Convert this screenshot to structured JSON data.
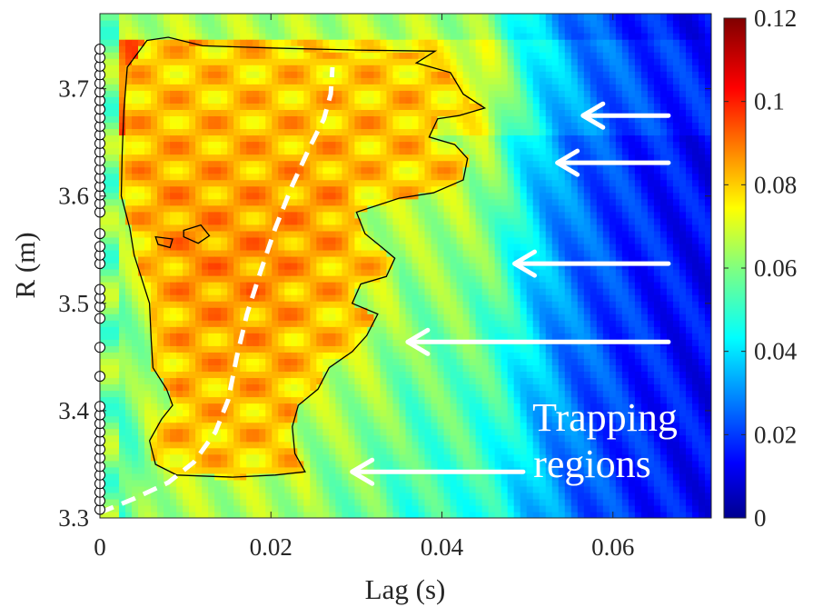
{
  "chart_data": {
    "type": "heatmap",
    "xlabel": "Lag (s)",
    "ylabel": "R (m)",
    "xlim": [
      0,
      0.0715
    ],
    "ylim": [
      3.3,
      3.77
    ],
    "x_ticks": [
      0,
      0.02,
      0.04,
      0.06
    ],
    "x_tick_labels": [
      "0",
      "0.02",
      "0.04",
      "0.06"
    ],
    "y_ticks": [
      3.3,
      3.4,
      3.5,
      3.6,
      3.7
    ],
    "y_tick_labels": [
      "3.3",
      "3.4",
      "3.5",
      "3.6",
      "3.7"
    ],
    "colorbar": {
      "range": [
        0,
        0.12
      ],
      "ticks": [
        0,
        0.02,
        0.04,
        0.06,
        0.08,
        0.1,
        0.12
      ],
      "tick_labels": [
        "0",
        "0.02",
        "0.04",
        "0.06",
        "0.08",
        "0.1",
        "0.12"
      ],
      "colormap": "jet"
    },
    "annotation": {
      "lines": [
        "Trapping",
        "regions"
      ],
      "color": "#ffffff"
    },
    "arrows": [
      {
        "y": 3.343,
        "x_from": 0.0495,
        "x_to": 0.0295
      },
      {
        "y": 3.464,
        "x_from": 0.0665,
        "x_to": 0.036
      },
      {
        "y": 3.537,
        "x_from": 0.0665,
        "x_to": 0.0485
      },
      {
        "y": 3.631,
        "x_from": 0.0665,
        "x_to": 0.0535
      },
      {
        "y": 3.675,
        "x_from": 0.0665,
        "x_to": 0.0565
      }
    ],
    "dashed_curve": {
      "color": "#ffffff",
      "points": [
        [
          0.0,
          3.305
        ],
        [
          0.004,
          3.318
        ],
        [
          0.008,
          3.333
        ],
        [
          0.011,
          3.352
        ],
        [
          0.0135,
          3.38
        ],
        [
          0.015,
          3.41
        ],
        [
          0.016,
          3.45
        ],
        [
          0.0172,
          3.49
        ],
        [
          0.0188,
          3.53
        ],
        [
          0.0205,
          3.57
        ],
        [
          0.0225,
          3.61
        ],
        [
          0.0245,
          3.645
        ],
        [
          0.0262,
          3.672
        ],
        [
          0.027,
          3.695
        ],
        [
          0.0272,
          3.72
        ]
      ]
    },
    "contour": {
      "level": 0.07,
      "color": "#000000",
      "points": [
        [
          0.0055,
          3.745
        ],
        [
          0.008,
          3.748
        ],
        [
          0.012,
          3.74
        ],
        [
          0.02,
          3.738
        ],
        [
          0.03,
          3.736
        ],
        [
          0.0392,
          3.735
        ],
        [
          0.037,
          3.724
        ],
        [
          0.041,
          3.715
        ],
        [
          0.0425,
          3.695
        ],
        [
          0.045,
          3.682
        ],
        [
          0.042,
          3.675
        ],
        [
          0.0395,
          3.672
        ],
        [
          0.0385,
          3.655
        ],
        [
          0.0415,
          3.648
        ],
        [
          0.043,
          3.635
        ],
        [
          0.0425,
          3.615
        ],
        [
          0.039,
          3.603
        ],
        [
          0.035,
          3.598
        ],
        [
          0.03,
          3.585
        ],
        [
          0.031,
          3.565
        ],
        [
          0.033,
          3.552
        ],
        [
          0.0345,
          3.542
        ],
        [
          0.0335,
          3.525
        ],
        [
          0.0305,
          3.518
        ],
        [
          0.0295,
          3.5
        ],
        [
          0.0325,
          3.49
        ],
        [
          0.0312,
          3.47
        ],
        [
          0.0295,
          3.455
        ],
        [
          0.0268,
          3.44
        ],
        [
          0.0255,
          3.42
        ],
        [
          0.0232,
          3.405
        ],
        [
          0.0225,
          3.385
        ],
        [
          0.0228,
          3.36
        ],
        [
          0.024,
          3.343
        ],
        [
          0.0205,
          3.34
        ],
        [
          0.0155,
          3.338
        ],
        [
          0.009,
          3.34
        ],
        [
          0.0065,
          3.35
        ],
        [
          0.0058,
          3.372
        ],
        [
          0.0072,
          3.392
        ],
        [
          0.0085,
          3.405
        ],
        [
          0.0078,
          3.42
        ],
        [
          0.0062,
          3.44
        ],
        [
          0.006,
          3.465
        ],
        [
          0.0058,
          3.5
        ],
        [
          0.0048,
          3.525
        ],
        [
          0.004,
          3.545
        ],
        [
          0.0035,
          3.57
        ],
        [
          0.0025,
          3.6
        ],
        [
          0.0026,
          3.64
        ],
        [
          0.0028,
          3.68
        ],
        [
          0.0032,
          3.72
        ],
        [
          0.0055,
          3.745
        ]
      ]
    },
    "contour_islands": [
      {
        "points": [
          [
            0.0098,
            3.568
          ],
          [
            0.0118,
            3.573
          ],
          [
            0.0128,
            3.563
          ],
          [
            0.0115,
            3.556
          ],
          [
            0.0098,
            3.562
          ],
          [
            0.0098,
            3.568
          ]
        ]
      },
      {
        "points": [
          [
            0.0065,
            3.562
          ],
          [
            0.0085,
            3.56
          ],
          [
            0.0082,
            3.552
          ],
          [
            0.0068,
            3.555
          ],
          [
            0.0065,
            3.562
          ]
        ]
      }
    ],
    "probe_markers": {
      "x": 0,
      "y": [
        3.308,
        3.316,
        3.324,
        3.332,
        3.34,
        3.348,
        3.356,
        3.364,
        3.372,
        3.38,
        3.388,
        3.396,
        3.404,
        3.432,
        3.459,
        3.486,
        3.497,
        3.505,
        3.513,
        3.537,
        3.545,
        3.553,
        3.565,
        3.585,
        3.593,
        3.601,
        3.609,
        3.617,
        3.625,
        3.633,
        3.641,
        3.649,
        3.657,
        3.665,
        3.673,
        3.681,
        3.689,
        3.697,
        3.705,
        3.713,
        3.721,
        3.729,
        3.737
      ]
    }
  }
}
